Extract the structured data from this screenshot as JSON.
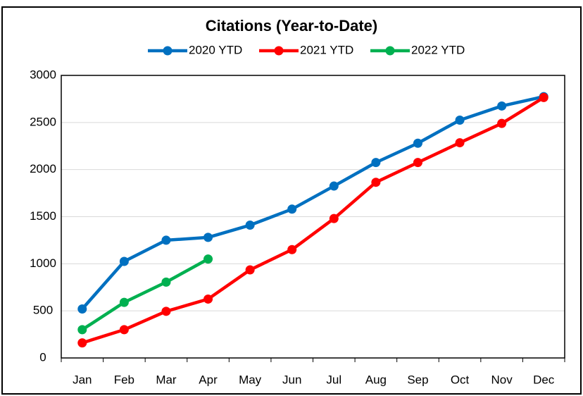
{
  "chart_data": {
    "type": "line",
    "title": "Citations (Year-to-Date)",
    "categories": [
      "Jan",
      "Feb",
      "Mar",
      "Apr",
      "May",
      "Jun",
      "Jul",
      "Aug",
      "Sep",
      "Oct",
      "Nov",
      "Dec"
    ],
    "series": [
      {
        "name": "2020 YTD",
        "color": "#0070c0",
        "values": [
          520,
          1025,
          1250,
          1280,
          1410,
          1580,
          1825,
          2075,
          2280,
          2525,
          2675,
          2775
        ]
      },
      {
        "name": "2021 YTD",
        "color": "#ff0000",
        "values": [
          160,
          300,
          495,
          625,
          935,
          1150,
          1480,
          1865,
          2075,
          2285,
          2490,
          2765
        ]
      },
      {
        "name": "2022 YTD",
        "color": "#00b050",
        "values": [
          300,
          590,
          805,
          1050,
          null,
          null,
          null,
          null,
          null,
          null,
          null,
          null
        ]
      }
    ],
    "ylim": [
      0,
      3000
    ],
    "yticks": [
      0,
      500,
      1000,
      1500,
      2000,
      2500,
      3000
    ],
    "grid": true,
    "legend": "top"
  }
}
